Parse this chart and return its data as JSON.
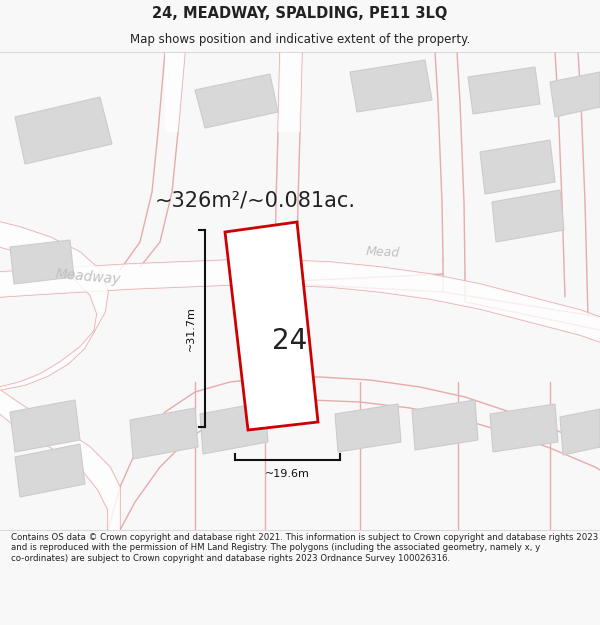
{
  "title": "24, MEADWAY, SPALDING, PE11 3LQ",
  "subtitle": "Map shows position and indicative extent of the property.",
  "area_label": "~326m²/~0.081ac.",
  "plot_number": "24",
  "dim_height": "~31.7m",
  "dim_width": "~19.6m",
  "street_label_1": "Meadway",
  "street_label_2": "Mead",
  "footer": "Contains OS data © Crown copyright and database right 2021. This information is subject to Crown copyright and database rights 2023 and is reproduced with the permission of HM Land Registry. The polygons (including the associated geometry, namely x, y co-ordinates) are subject to Crown copyright and database rights 2023 Ordnance Survey 100026316.",
  "bg_color": "#f8f8f8",
  "map_bg": "#efefef",
  "plot_fill": "#ffffff",
  "plot_edge": "#cc0000",
  "road_color": "#ffffff",
  "road_edge": "#e8aaaa",
  "building_fill": "#d8d8d8",
  "building_edge": "#cccccc",
  "dim_color": "#111111",
  "text_color": "#222222",
  "street_text_color": "#c0c0c0",
  "title_fontsize": 10.5,
  "subtitle_fontsize": 8.5,
  "area_fontsize": 15,
  "plot_num_fontsize": 20,
  "dim_fontsize": 8,
  "street_fontsize": 10,
  "footer_fontsize": 6.2
}
